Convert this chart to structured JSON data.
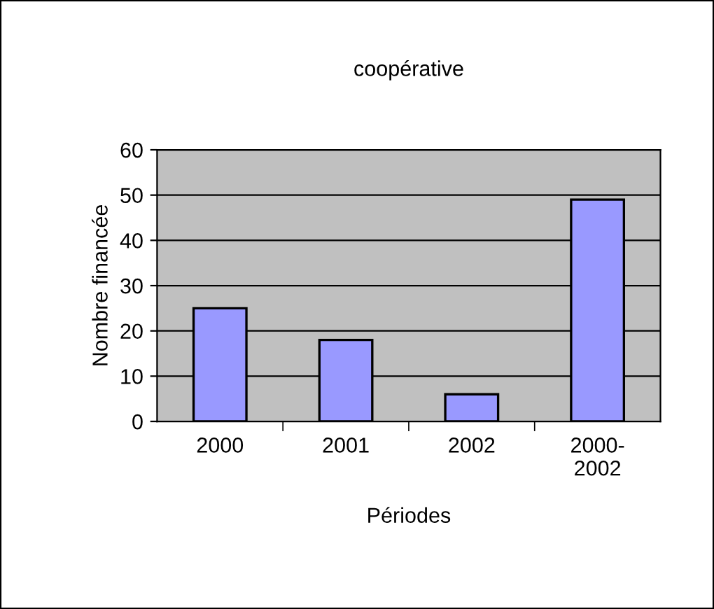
{
  "chart_data": {
    "type": "bar",
    "title": "coopérative",
    "xlabel": "Périodes",
    "ylabel": "Nombre financée",
    "categories": [
      "2000",
      "2001",
      "2002",
      "2000-\n2002"
    ],
    "values": [
      25,
      18,
      6,
      49
    ],
    "color": "#9999ff",
    "ylim": [
      0,
      60
    ],
    "yticks": [
      0,
      10,
      20,
      30,
      40,
      50,
      60
    ],
    "grid": "y",
    "legend": false
  }
}
